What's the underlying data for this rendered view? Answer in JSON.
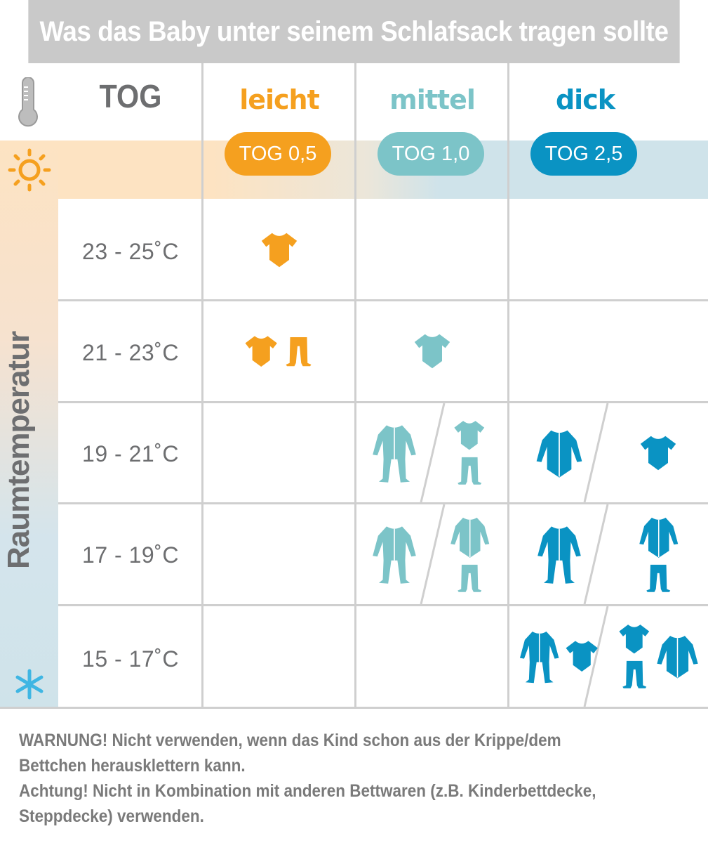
{
  "title": "Was das Baby unter seinem Schlafsack tragen sollte",
  "header": {
    "tog_label": "TOG",
    "thermometer_icon": "thermometer-icon",
    "sun_icon": "sun-icon",
    "snowflake_icon": "snowflake-icon",
    "columns": [
      {
        "label": "leicht",
        "badge": "TOG 0,5",
        "color": "#f5a01f"
      },
      {
        "label": "mittel",
        "badge": "TOG 1,0",
        "color": "#7cc4c8"
      },
      {
        "label": "dick",
        "badge": "TOG 2,5",
        "color": "#0a93c3"
      }
    ]
  },
  "side_label": "Raumtemperatur",
  "rows": [
    {
      "temp": "23 - 25˚C",
      "cells": [
        [
          [
            [
              "bodysuit"
            ]
          ]
        ],
        [],
        []
      ]
    },
    {
      "temp": "21 - 23˚C",
      "cells": [
        [
          [
            [
              "bodysuit"
            ],
            [
              "pants"
            ]
          ]
        ],
        [
          [
            [
              "bodysuit"
            ]
          ]
        ],
        []
      ]
    },
    {
      "temp": "19 - 21˚C",
      "cells": [
        [],
        [
          [
            [
              "sleepsuit"
            ]
          ],
          [
            [
              "bodysuit",
              "pants"
            ]
          ]
        ],
        [
          [
            [
              "longsleeve-bodysuit"
            ]
          ],
          [
            [
              "bodysuit"
            ]
          ]
        ]
      ]
    },
    {
      "temp": "17 - 19˚C",
      "cells": [
        [],
        [
          [
            [
              "sleepsuit"
            ]
          ],
          [
            [
              "longsleeve-bodysuit",
              "pants"
            ]
          ]
        ],
        [
          [
            [
              "sleepsuit"
            ]
          ],
          [
            [
              "longsleeve-bodysuit",
              "pants"
            ]
          ]
        ]
      ]
    },
    {
      "temp": "15 - 17˚C",
      "cells": [
        [],
        [],
        [
          [
            [
              "sleepsuit"
            ],
            [
              "bodysuit"
            ]
          ],
          [
            [
              "bodysuit",
              "pants"
            ],
            [
              "longsleeve-bodysuit"
            ]
          ]
        ]
      ]
    }
  ],
  "footer": {
    "warning": "WARNUNG! Nicht verwenden, wenn das Kind schon aus der Krippe/dem Bettchen herausklettern kann.",
    "caution": "Achtung! Nicht in Kombination mit anderen Bettwaren (z.B. Kinderbettdecke, Steppdecke) verwenden."
  }
}
